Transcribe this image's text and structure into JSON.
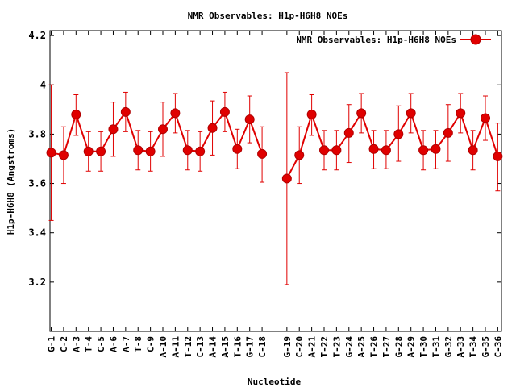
{
  "chart_data": {
    "type": "line",
    "title": "NMR Observables: H1p-H6H8 NOEs",
    "xlabel": "Nucleotide",
    "ylabel": "H1p-H6H8 (Angstroms)",
    "ylim": [
      3.0,
      4.22
    ],
    "yticks": [
      3.2,
      3.4,
      3.6,
      3.8,
      4.0,
      4.2
    ],
    "ytick_labels": [
      "3.2",
      "3.4",
      "3.6",
      "3.8",
      "4",
      "4.2"
    ],
    "grid": false,
    "legend_position": "top-right",
    "series_color": "#e00000",
    "categories": [
      "G-1",
      "C-2",
      "A-3",
      "T-4",
      "C-5",
      "A-6",
      "A-7",
      "T-8",
      "C-9",
      "A-10",
      "A-11",
      "T-12",
      "C-13",
      "A-14",
      "A-15",
      "T-16",
      "G-17",
      "C-18",
      "G-19",
      "C-20",
      "A-21",
      "T-22",
      "T-23",
      "G-24",
      "A-25",
      "T-26",
      "T-27",
      "G-28",
      "A-29",
      "T-30",
      "T-31",
      "G-32",
      "A-33",
      "T-34",
      "G-35",
      "C-36"
    ],
    "x_positions": [
      1,
      2,
      3,
      4,
      5,
      6,
      7,
      8,
      9,
      10,
      11,
      12,
      13,
      14,
      15,
      16,
      17,
      18,
      20,
      21,
      22,
      23,
      24,
      25,
      26,
      27,
      28,
      29,
      30,
      31,
      32,
      33,
      34,
      35,
      36,
      37
    ],
    "segments": [
      [
        0,
        17
      ],
      [
        18,
        35
      ]
    ],
    "series": [
      {
        "name": "NMR Observables: H1p-H6H8 NOEs",
        "values": [
          3.725,
          3.715,
          3.88,
          3.73,
          3.73,
          3.82,
          3.89,
          3.735,
          3.73,
          3.82,
          3.885,
          3.735,
          3.73,
          3.825,
          3.89,
          3.74,
          3.86,
          3.72,
          3.62,
          3.715,
          3.88,
          3.735,
          3.735,
          3.805,
          3.885,
          3.74,
          3.735,
          3.8,
          3.885,
          3.735,
          3.74,
          3.805,
          3.885,
          3.735,
          3.865,
          3.71
        ],
        "err_low": [
          3.45,
          3.6,
          3.795,
          3.65,
          3.65,
          3.71,
          3.81,
          3.655,
          3.65,
          3.71,
          3.805,
          3.655,
          3.65,
          3.715,
          3.81,
          3.66,
          3.765,
          3.605,
          3.19,
          3.6,
          3.795,
          3.655,
          3.655,
          3.685,
          3.805,
          3.66,
          3.66,
          3.69,
          3.805,
          3.655,
          3.66,
          3.69,
          3.805,
          3.655,
          3.775,
          3.57
        ],
        "err_high": [
          4.0,
          3.83,
          3.96,
          3.81,
          3.81,
          3.93,
          3.97,
          3.815,
          3.81,
          3.93,
          3.965,
          3.815,
          3.81,
          3.935,
          3.97,
          3.82,
          3.955,
          3.83,
          4.05,
          3.83,
          3.96,
          3.815,
          3.815,
          3.92,
          3.965,
          3.815,
          3.815,
          3.915,
          3.965,
          3.815,
          3.815,
          3.92,
          3.965,
          3.815,
          3.955,
          3.845
        ]
      }
    ]
  }
}
